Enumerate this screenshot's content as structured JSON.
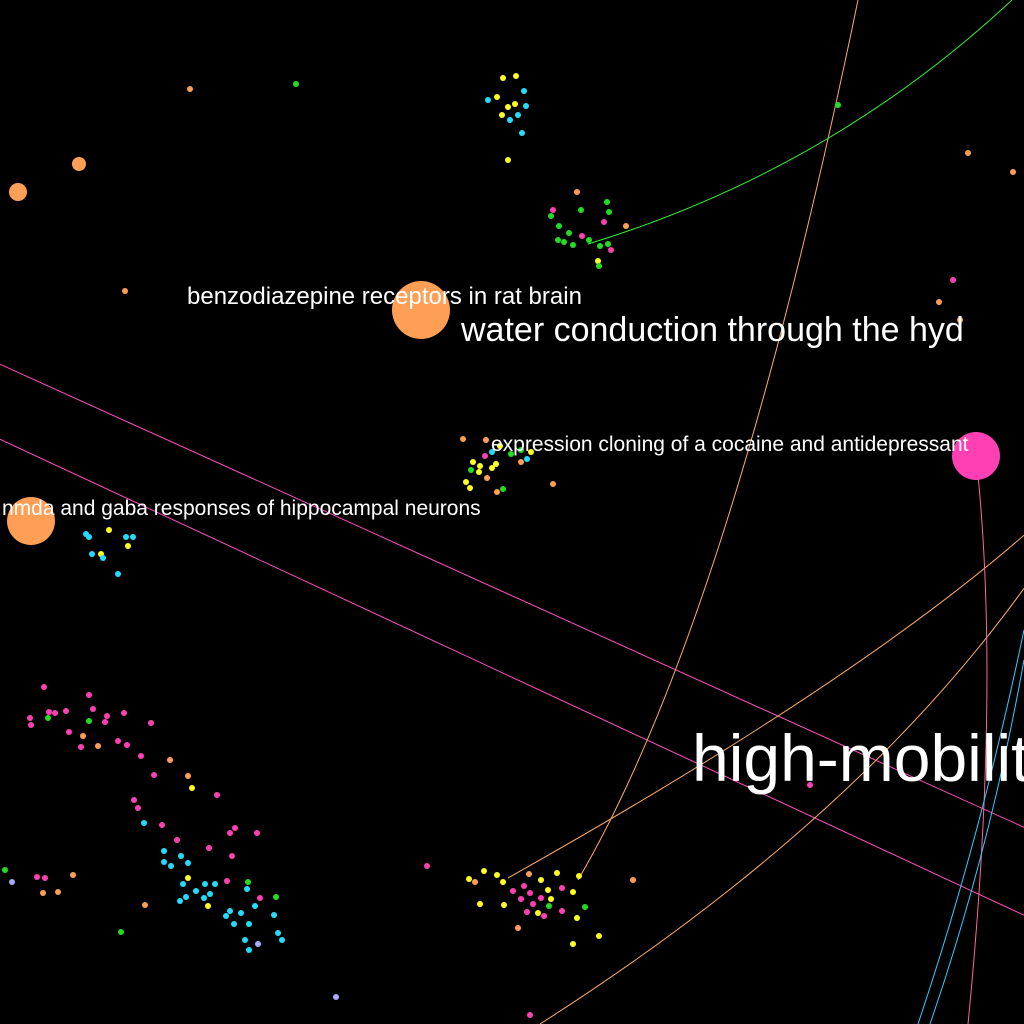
{
  "labels": {
    "benzo": "benzodiazepine receptors in rat brain",
    "water": "water conduction through the hyd",
    "cocaine": "expression cloning of a cocaine and antidepressant",
    "nmda": "nmda and gaba responses of hippocampal neurons",
    "hmg": "high-mobilit"
  },
  "colors": {
    "background": "#000000",
    "orange": "#ff9f55",
    "pink": "#ff3fb4",
    "green": "#22dd22",
    "cyan": "#22ddff",
    "yellow": "#ffff22",
    "lavender": "#aaaaff",
    "label": "#ffffff"
  }
}
